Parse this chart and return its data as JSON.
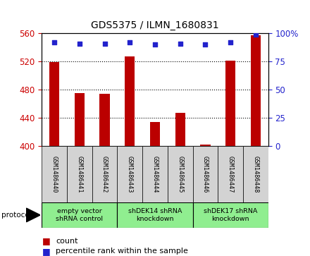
{
  "title": "GDS5375 / ILMN_1680831",
  "samples": [
    "GSM1486440",
    "GSM1486441",
    "GSM1486442",
    "GSM1486443",
    "GSM1486444",
    "GSM1486445",
    "GSM1486446",
    "GSM1486447",
    "GSM1486448"
  ],
  "counts": [
    519,
    475,
    474,
    527,
    434,
    447,
    402,
    521,
    557
  ],
  "percentile_ranks": [
    92,
    91,
    91,
    92,
    90,
    91,
    90,
    92,
    99
  ],
  "ylim_left": [
    400,
    560
  ],
  "ylim_right": [
    0,
    100
  ],
  "yticks_left": [
    400,
    440,
    480,
    520,
    560
  ],
  "yticks_right": [
    0,
    25,
    50,
    75,
    100
  ],
  "bar_color": "#BB0000",
  "dot_color": "#2222CC",
  "groups": [
    {
      "label": "empty vector\nshRNA control",
      "start": 0,
      "end": 3,
      "color": "#90EE90"
    },
    {
      "label": "shDEK14 shRNA\nknockdown",
      "start": 3,
      "end": 6,
      "color": "#90EE90"
    },
    {
      "label": "shDEK17 shRNA\nknockdown",
      "start": 6,
      "end": 9,
      "color": "#90EE90"
    }
  ],
  "protocol_label": "protocol",
  "legend_count_label": "count",
  "legend_pct_label": "percentile rank within the sample",
  "tick_color_left": "#CC0000",
  "tick_color_right": "#2222CC",
  "bar_width": 0.4,
  "cell_bg": "#D3D3D3",
  "fig_bg": "#FFFFFF"
}
